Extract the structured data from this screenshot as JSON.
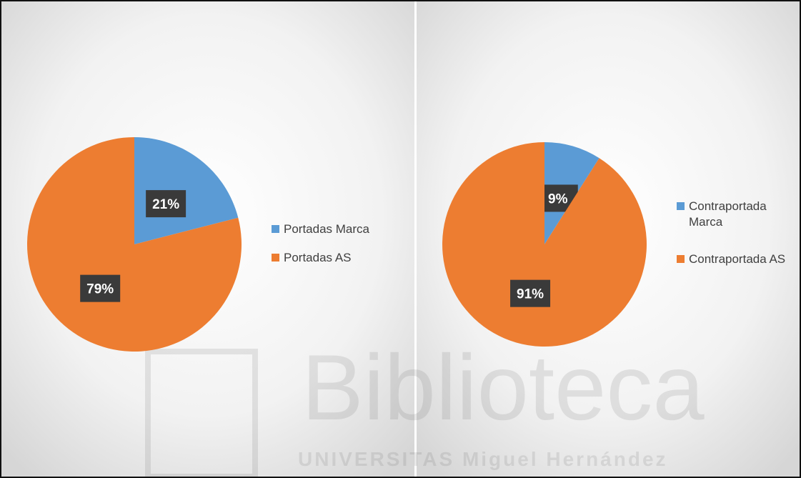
{
  "chart_data": [
    {
      "type": "pie",
      "categories": [
        "Portadas Marca",
        "Portadas AS"
      ],
      "values": [
        21,
        79
      ],
      "value_labels": [
        "21%",
        "79%"
      ],
      "colors": [
        "#5b9bd5",
        "#ed7d31"
      ]
    },
    {
      "type": "pie",
      "categories": [
        "Contraportada Marca",
        "Contraportada AS"
      ],
      "values": [
        9,
        91
      ],
      "value_labels": [
        "9%",
        "91%"
      ],
      "colors": [
        "#5b9bd5",
        "#ed7d31"
      ]
    }
  ],
  "watermark": {
    "title": "Biblioteca",
    "subtitle": "UNIVERSITAS Miguel Hernández"
  }
}
